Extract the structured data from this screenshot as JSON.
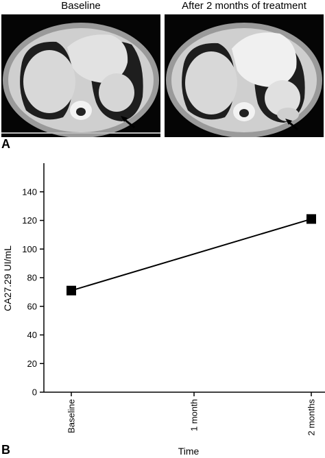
{
  "figure": {
    "panel_a": {
      "letter": "A",
      "left_title": "Baseline",
      "right_title": "After 2 months of treatment",
      "image_content": "axial-ct-chest-lung-window"
    },
    "panel_b": {
      "letter": "B"
    }
  },
  "chart_data": {
    "type": "line",
    "title": "",
    "xlabel": "Time",
    "ylabel": "CA27.29 UI/mL",
    "categories": [
      "Baseline",
      "1 month",
      "2 months"
    ],
    "x": [
      0,
      1,
      2
    ],
    "series": [
      {
        "points": [
          {
            "x": 0,
            "y": 71
          },
          {
            "x": 2,
            "y": 121
          }
        ],
        "marker": "square",
        "color": "#000000"
      }
    ],
    "ylim": [
      0,
      160
    ],
    "yticks": [
      0,
      20,
      40,
      60,
      80,
      100,
      120,
      140
    ],
    "grid": false,
    "legend": "none"
  }
}
